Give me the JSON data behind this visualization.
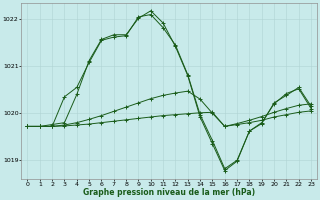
{
  "title": "Graphe pression niveau de la mer (hPa)",
  "background_color": "#c8eaea",
  "grid_color": "#b0d4d4",
  "line_color": "#1a5c1a",
  "ylim": [
    1018.6,
    1022.35
  ],
  "yticks": [
    1019,
    1020,
    1021,
    1022
  ],
  "xlim": [
    -0.5,
    23.5
  ],
  "xticks": [
    0,
    1,
    2,
    3,
    4,
    5,
    6,
    7,
    8,
    9,
    10,
    11,
    12,
    13,
    14,
    15,
    16,
    17,
    18,
    19,
    20,
    21,
    22,
    23
  ],
  "series": [
    {
      "x": [
        0,
        1,
        2,
        3,
        4,
        5,
        6,
        7,
        8,
        9,
        10,
        11,
        12,
        13,
        14,
        15,
        16,
        17,
        18,
        19,
        20,
        21,
        22,
        23
      ],
      "y": [
        1019.72,
        1019.72,
        1019.72,
        1019.73,
        1019.75,
        1019.77,
        1019.8,
        1019.83,
        1019.86,
        1019.89,
        1019.92,
        1019.95,
        1019.97,
        1019.99,
        1020.01,
        1020.02,
        1019.72,
        1019.76,
        1019.8,
        1019.85,
        1019.92,
        1019.97,
        1020.02,
        1020.05
      ]
    },
    {
      "x": [
        0,
        1,
        2,
        3,
        4,
        5,
        6,
        7,
        8,
        9,
        10,
        11,
        12,
        13,
        14,
        15,
        16,
        17,
        18,
        19,
        20,
        21,
        22,
        23
      ],
      "y": [
        1019.72,
        1019.72,
        1019.72,
        1019.75,
        1019.8,
        1019.87,
        1019.95,
        1020.04,
        1020.13,
        1020.22,
        1020.31,
        1020.38,
        1020.43,
        1020.47,
        1020.3,
        1020.0,
        1019.72,
        1019.78,
        1019.85,
        1019.93,
        1020.02,
        1020.1,
        1020.17,
        1020.2
      ]
    },
    {
      "x": [
        0,
        1,
        2,
        3,
        4,
        5,
        6,
        7,
        8,
        9,
        10,
        11,
        12,
        13,
        14,
        15,
        16,
        17,
        18,
        19,
        20,
        21,
        22,
        23
      ],
      "y": [
        1019.72,
        1019.72,
        1019.72,
        1020.35,
        1020.55,
        1021.08,
        1021.55,
        1021.62,
        1021.65,
        1022.05,
        1022.1,
        1021.82,
        1021.45,
        1020.82,
        1019.97,
        1019.42,
        1018.82,
        1019.0,
        1019.62,
        1019.78,
        1020.22,
        1020.38,
        1020.55,
        1020.15
      ]
    },
    {
      "x": [
        0,
        1,
        2,
        3,
        4,
        5,
        6,
        7,
        8,
        9,
        10,
        11,
        12,
        13,
        14,
        15,
        16,
        17,
        18,
        19,
        20,
        21,
        22,
        23
      ],
      "y": [
        1019.72,
        1019.72,
        1019.76,
        1019.8,
        1020.4,
        1021.12,
        1021.57,
        1021.67,
        1021.67,
        1022.02,
        1022.18,
        1021.92,
        1021.42,
        1020.8,
        1019.92,
        1019.35,
        1018.78,
        1018.98,
        1019.62,
        1019.8,
        1020.2,
        1020.42,
        1020.52,
        1020.1
      ]
    }
  ]
}
